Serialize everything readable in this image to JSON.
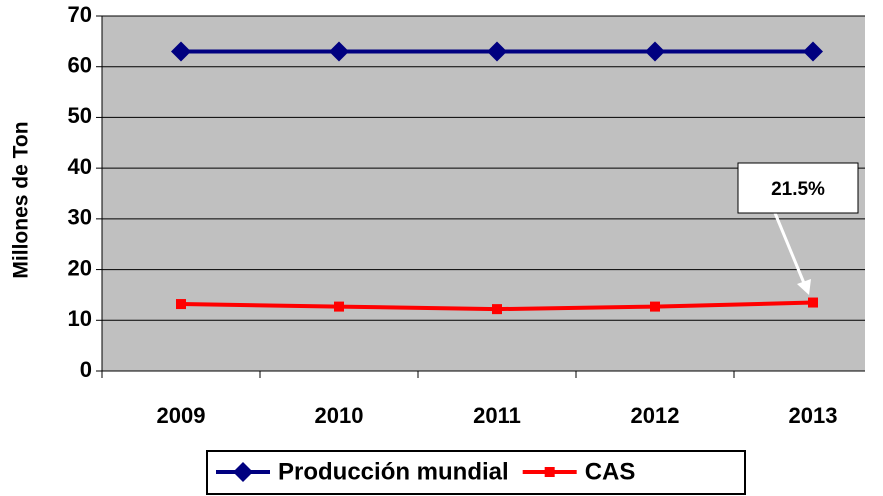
{
  "chart_data": {
    "type": "line",
    "y_label": "Millones de Ton",
    "categories": [
      "2009",
      "2010",
      "2011",
      "2012",
      "2013"
    ],
    "series": [
      {
        "name": "Producción mundial",
        "color": "#000080",
        "marker": "diamond",
        "values": [
          63,
          63,
          63,
          63,
          63
        ]
      },
      {
        "name": "CAS",
        "color": "#ff0000",
        "marker": "square",
        "values": [
          13.2,
          12.7,
          12.2,
          12.7,
          13.5
        ]
      }
    ],
    "ylim": [
      0,
      70
    ],
    "yticks": [
      0,
      10,
      20,
      30,
      40,
      50,
      60,
      70
    ],
    "grid": true,
    "annotation": "21.5%",
    "legend": "bottom"
  }
}
